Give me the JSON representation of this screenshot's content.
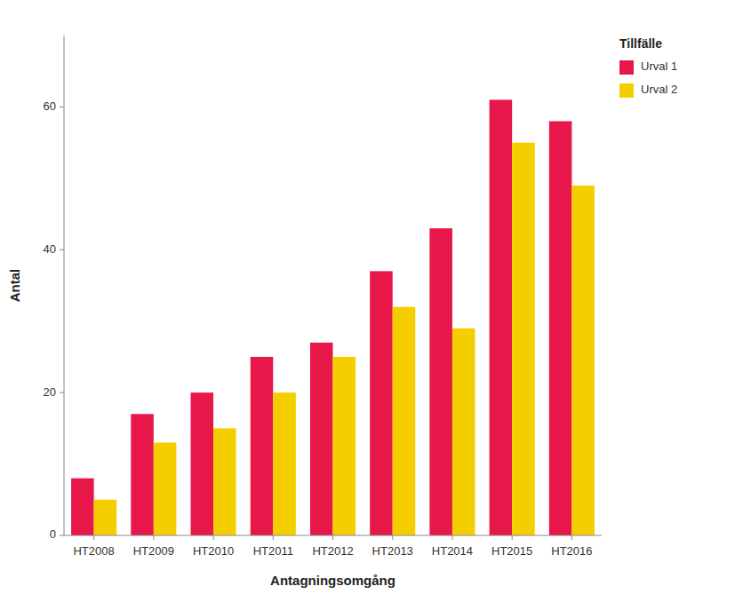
{
  "chart_data": {
    "type": "bar",
    "xlabel": "Antagningsomgång",
    "ylabel": "Antal",
    "legend_title": "Tillfälle",
    "categories": [
      "HT2008",
      "HT2009",
      "HT2010",
      "HT2011",
      "HT2012",
      "HT2013",
      "HT2014",
      "HT2015",
      "HT2016"
    ],
    "series": [
      {
        "name": "Urval 1",
        "color": "#E8174A",
        "values": [
          8,
          17,
          20,
          25,
          27,
          37,
          43,
          61,
          58
        ]
      },
      {
        "name": "Urval 2",
        "color": "#F5CE00",
        "values": [
          5,
          13,
          15,
          20,
          25,
          32,
          29,
          55,
          49
        ]
      }
    ],
    "ylim": [
      0,
      70
    ],
    "yticks": [
      0,
      20,
      40,
      60
    ],
    "grid": false,
    "legend": "upper right"
  }
}
